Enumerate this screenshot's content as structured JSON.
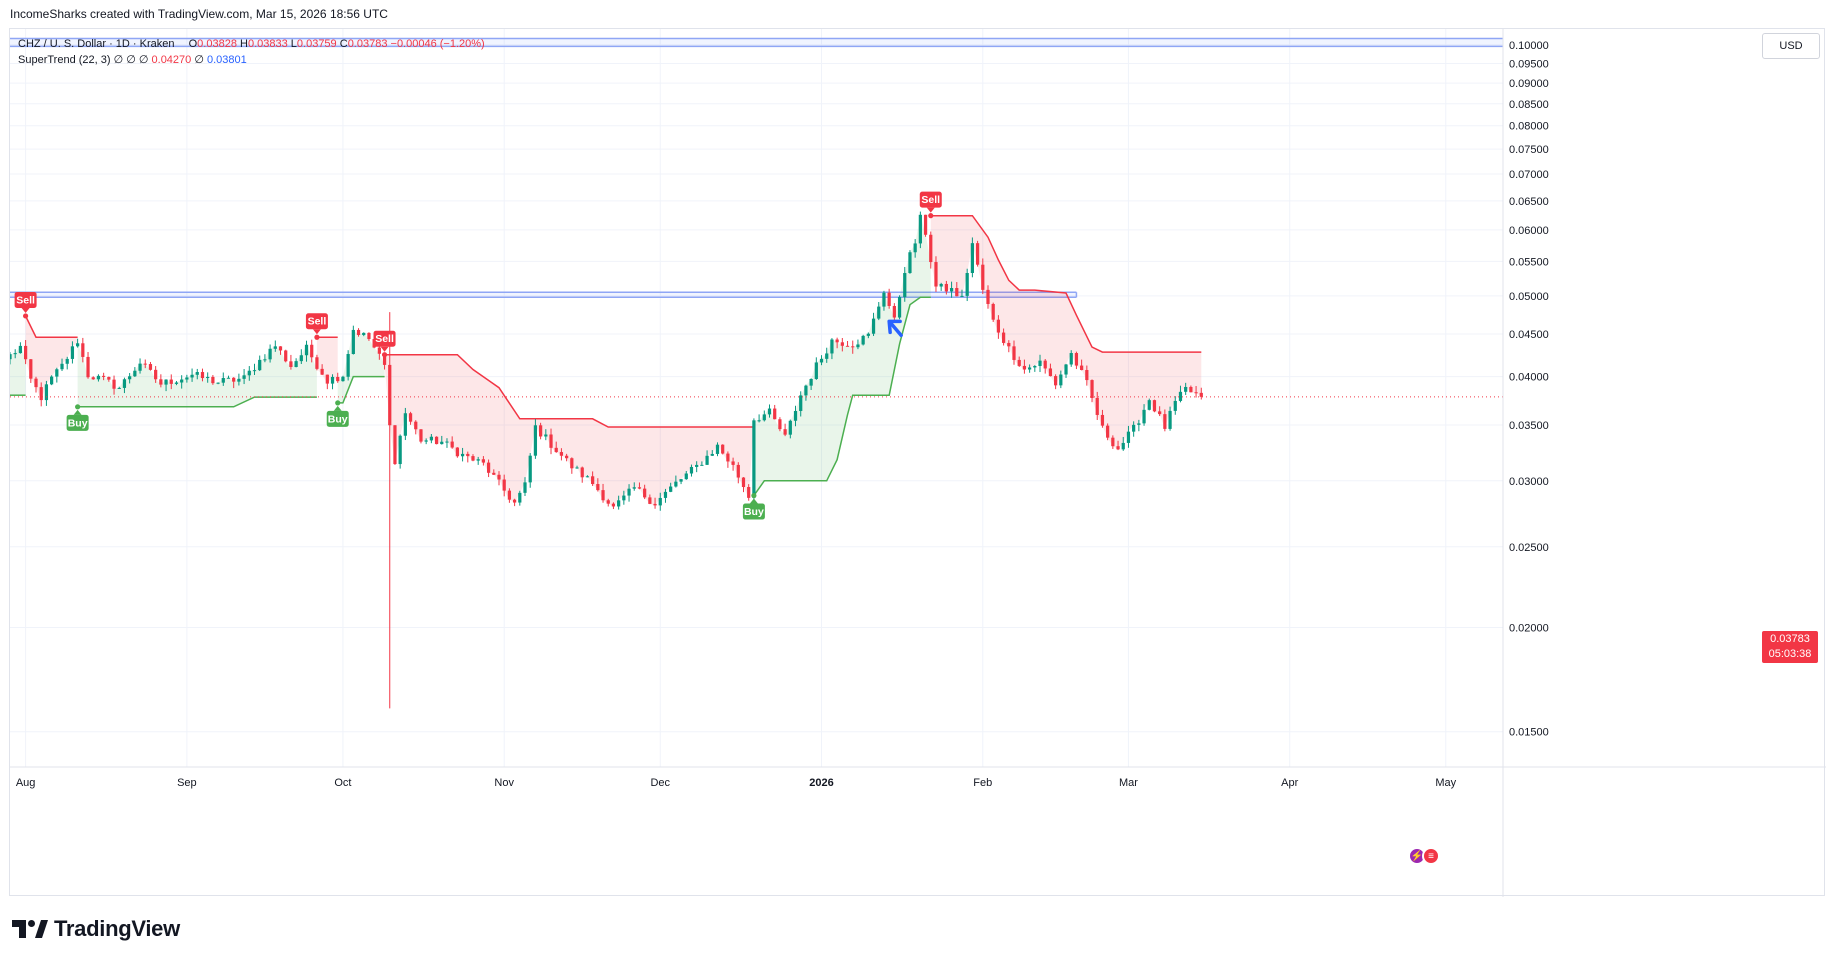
{
  "header": {
    "attribution": "IncomeSharks created with TradingView.com, Mar 15, 2026 18:56 UTC"
  },
  "legend": {
    "symbol": "CHZ / U. S. Dollar · 1D · Kraken",
    "open_label": "O",
    "open": "0.03828",
    "high_label": "H",
    "high": "0.03833",
    "low_label": "L",
    "low": "0.03759",
    "close_label": "C",
    "close": "0.03783",
    "change": "−0.00046 (−1.20%)",
    "indicator": "SuperTrend (22, 3)",
    "indicator_dots": "∅ ∅ ∅",
    "st_value_1": "0.04270",
    "st_dot": "∅",
    "st_value_2": "0.03801"
  },
  "price_axis": {
    "currency": "USD",
    "last_price": "0.03783",
    "countdown": "05:03:38"
  },
  "footer": {
    "logo_text": "TradingView"
  },
  "colors": {
    "up": "#089981",
    "down": "#f23645",
    "supertrend_up": "#4caf50",
    "supertrend_down": "#f23645",
    "zone_line": "#2962ff",
    "grid": "#f0f3fa"
  },
  "chart_data": {
    "type": "candlestick",
    "title": "CHZ / U. S. Dollar · 1D · Kraken",
    "x_range": [
      "2025-07-29",
      "2026-05-12"
    ],
    "y_scale": "log",
    "ylim": [
      0.0143,
      0.1045
    ],
    "y_ticks": [
      "0.10000",
      "0.09500",
      "0.09000",
      "0.08500",
      "0.08000",
      "0.07500",
      "0.07000",
      "0.06500",
      "0.06000",
      "0.05500",
      "0.05000",
      "0.04500",
      "0.04000",
      "0.03500",
      "0.03000",
      "0.02500",
      "0.02000",
      "0.01500"
    ],
    "x_ticks": [
      {
        "label": "Aug",
        "date": "2025-08-01",
        "bold": false
      },
      {
        "label": "Sep",
        "date": "2025-09-01",
        "bold": false
      },
      {
        "label": "Oct",
        "date": "2025-10-01",
        "bold": false
      },
      {
        "label": "Nov",
        "date": "2025-11-01",
        "bold": false
      },
      {
        "label": "Dec",
        "date": "2025-12-01",
        "bold": false
      },
      {
        "label": "2026",
        "date": "2026-01-01",
        "bold": true
      },
      {
        "label": "Feb",
        "date": "2026-02-01",
        "bold": false
      },
      {
        "label": "Mar",
        "date": "2026-03-01",
        "bold": false
      },
      {
        "label": "Apr",
        "date": "2026-04-01",
        "bold": false
      },
      {
        "label": "May",
        "date": "2026-05-01",
        "bold": false
      }
    ],
    "grid": true,
    "last_price": 0.03783,
    "close_path": [
      [
        "2025-07-29",
        0.0424
      ],
      [
        "2025-07-31",
        0.0434
      ],
      [
        "2025-08-02",
        0.0396
      ],
      [
        "2025-08-04",
        0.0378
      ],
      [
        "2025-08-06",
        0.0398
      ],
      [
        "2025-08-08",
        0.0412
      ],
      [
        "2025-08-11",
        0.0442
      ],
      [
        "2025-08-13",
        0.0402
      ],
      [
        "2025-08-16",
        0.0396
      ],
      [
        "2025-08-19",
        0.0388
      ],
      [
        "2025-08-23",
        0.0416
      ],
      [
        "2025-08-27",
        0.0392
      ],
      [
        "2025-09-02",
        0.0402
      ],
      [
        "2025-09-07",
        0.0394
      ],
      [
        "2025-09-12",
        0.0398
      ],
      [
        "2025-09-15",
        0.0418
      ],
      [
        "2025-09-18",
        0.0436
      ],
      [
        "2025-09-21",
        0.0412
      ],
      [
        "2025-09-24",
        0.0432
      ],
      [
        "2025-09-28",
        0.0396
      ],
      [
        "2025-10-01",
        0.0402
      ],
      [
        "2025-10-03",
        0.0456
      ],
      [
        "2025-10-06",
        0.0444
      ],
      [
        "2025-10-09",
        0.0412
      ],
      [
        "2025-10-10",
        0.0348
      ],
      [
        "2025-10-11",
        0.0318
      ],
      [
        "2025-10-13",
        0.0362
      ],
      [
        "2025-10-16",
        0.0336
      ],
      [
        "2025-10-20",
        0.0334
      ],
      [
        "2025-10-24",
        0.0322
      ],
      [
        "2025-10-28",
        0.0314
      ],
      [
        "2025-11-01",
        0.0292
      ],
      [
        "2025-11-03",
        0.0282
      ],
      [
        "2025-11-05",
        0.0296
      ],
      [
        "2025-11-07",
        0.0348
      ],
      [
        "2025-11-10",
        0.0332
      ],
      [
        "2025-11-14",
        0.0312
      ],
      [
        "2025-11-18",
        0.0298
      ],
      [
        "2025-11-22",
        0.0278
      ],
      [
        "2025-11-26",
        0.0294
      ],
      [
        "2025-11-30",
        0.0282
      ],
      [
        "2025-12-04",
        0.0298
      ],
      [
        "2025-12-08",
        0.0312
      ],
      [
        "2025-12-12",
        0.033
      ],
      [
        "2025-12-15",
        0.0312
      ],
      [
        "2025-12-18",
        0.0288
      ],
      [
        "2025-12-19",
        0.0356
      ],
      [
        "2025-12-22",
        0.0362
      ],
      [
        "2025-12-25",
        0.0338
      ],
      [
        "2025-12-28",
        0.038
      ],
      [
        "2025-12-31",
        0.0412
      ],
      [
        "2026-01-03",
        0.0442
      ],
      [
        "2026-01-07",
        0.0438
      ],
      [
        "2026-01-10",
        0.0448
      ],
      [
        "2026-01-13",
        0.0508
      ],
      [
        "2026-01-15",
        0.0466
      ],
      [
        "2026-01-17",
        0.0538
      ],
      [
        "2026-01-19",
        0.058
      ],
      [
        "2026-01-20",
        0.0618
      ],
      [
        "2026-01-21",
        0.0596
      ],
      [
        "2026-01-23",
        0.0512
      ],
      [
        "2026-01-26",
        0.0508
      ],
      [
        "2026-01-28",
        0.0496
      ],
      [
        "2026-01-30",
        0.0578
      ],
      [
        "2026-02-01",
        0.0508
      ],
      [
        "2026-02-03",
        0.0466
      ],
      [
        "2026-02-06",
        0.0432
      ],
      [
        "2026-02-09",
        0.0408
      ],
      [
        "2026-02-12",
        0.0416
      ],
      [
        "2026-02-15",
        0.0392
      ],
      [
        "2026-02-18",
        0.0426
      ],
      [
        "2026-02-21",
        0.0392
      ],
      [
        "2026-02-24",
        0.0346
      ],
      [
        "2026-02-27",
        0.0328
      ],
      [
        "2026-03-02",
        0.0346
      ],
      [
        "2026-03-05",
        0.0376
      ],
      [
        "2026-03-08",
        0.0348
      ],
      [
        "2026-03-10",
        0.0372
      ],
      [
        "2026-03-12",
        0.0386
      ],
      [
        "2026-03-15",
        0.03783
      ]
    ],
    "supertrend": {
      "up_segments": [
        [
          [
            "2025-07-29",
            0.038
          ],
          [
            "2025-08-01",
            0.038
          ]
        ],
        [
          [
            "2025-08-11",
            0.0368
          ],
          [
            "2025-09-10",
            0.0368
          ],
          [
            "2025-09-14",
            0.0378
          ],
          [
            "2025-09-26",
            0.0378
          ]
        ],
        [
          [
            "2025-09-30",
            0.0372
          ],
          [
            "2025-10-01",
            0.0372
          ],
          [
            "2025-10-03",
            0.04
          ],
          [
            "2025-10-09",
            0.04
          ]
        ],
        [
          [
            "2025-12-19",
            0.0288
          ],
          [
            "2025-12-21",
            0.03
          ],
          [
            "2026-01-02",
            0.03
          ],
          [
            "2026-01-04",
            0.0318
          ],
          [
            "2026-01-06",
            0.036
          ],
          [
            "2026-01-07",
            0.038
          ],
          [
            "2026-01-14",
            0.038
          ],
          [
            "2026-01-16",
            0.0438
          ],
          [
            "2026-01-18",
            0.0488
          ],
          [
            "2026-01-20",
            0.0498
          ],
          [
            "2026-01-22",
            0.0498
          ]
        ]
      ],
      "down_segments": [
        [
          [
            "2025-08-01",
            0.0473
          ],
          [
            "2025-08-03",
            0.0446
          ],
          [
            "2025-08-11",
            0.0446
          ]
        ],
        [
          [
            "2025-09-26",
            0.0446
          ],
          [
            "2025-09-30",
            0.0446
          ]
        ],
        [
          [
            "2025-10-09",
            0.0425
          ],
          [
            "2025-10-23",
            0.0425
          ],
          [
            "2025-10-26",
            0.0408
          ],
          [
            "2025-10-31",
            0.0388
          ],
          [
            "2025-11-04",
            0.0356
          ],
          [
            "2025-11-18",
            0.0356
          ],
          [
            "2025-11-21",
            0.0348
          ],
          [
            "2025-12-19",
            0.0348
          ]
        ],
        [
          [
            "2026-01-22",
            0.0624
          ],
          [
            "2026-01-30",
            0.0624
          ],
          [
            "2026-02-02",
            0.0588
          ],
          [
            "2026-02-04",
            0.0552
          ],
          [
            "2026-02-06",
            0.0522
          ],
          [
            "2026-02-08",
            0.0508
          ],
          [
            "2026-02-11",
            0.0508
          ],
          [
            "2026-02-17",
            0.0504
          ],
          [
            "2026-02-19",
            0.0474
          ],
          [
            "2026-02-22",
            0.0434
          ],
          [
            "2026-02-24",
            0.0428
          ],
          [
            "2026-03-15",
            0.0428
          ]
        ]
      ]
    },
    "signals": [
      {
        "type": "sell",
        "label": "Sell",
        "date": "2025-08-01",
        "price": 0.0473
      },
      {
        "type": "buy",
        "label": "Buy",
        "date": "2025-08-11",
        "price": 0.0368
      },
      {
        "type": "sell",
        "label": "Sell",
        "date": "2025-09-26",
        "price": 0.0446
      },
      {
        "type": "buy",
        "label": "Buy",
        "date": "2025-09-30",
        "price": 0.0372
      },
      {
        "type": "sell",
        "label": "Sell",
        "date": "2025-10-09",
        "price": 0.0425
      },
      {
        "type": "buy",
        "label": "Buy",
        "date": "2025-12-19",
        "price": 0.0288
      },
      {
        "type": "sell",
        "label": "Sell",
        "date": "2026-01-22",
        "price": 0.0624
      }
    ],
    "spike": {
      "date": "2025-10-10",
      "high": 0.0478,
      "low": 0.016
    },
    "zones": [
      {
        "from": "2025-07-29",
        "to": "2026-05-12",
        "top": 0.1018,
        "bottom": 0.0996
      },
      {
        "from": "2025-07-29",
        "to": "2026-02-19",
        "top": 0.0505,
        "bottom": 0.0498
      }
    ],
    "arrow": {
      "date": "2026-01-14",
      "price": 0.0466
    }
  }
}
